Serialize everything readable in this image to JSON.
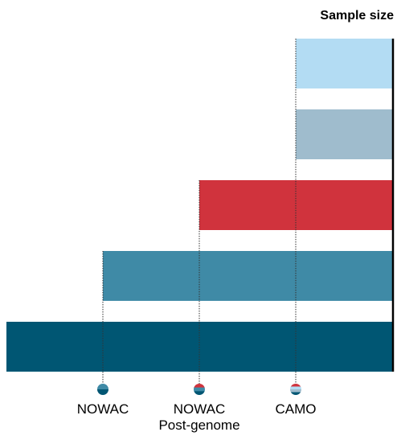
{
  "chart_data": {
    "type": "bar",
    "orientation": "horizontal",
    "title": "Sample size",
    "bars": [
      {
        "id": "bar-1",
        "color": "#b3dcf3",
        "start_marker": "CAMO"
      },
      {
        "id": "bar-2",
        "color": "#9fbccd",
        "start_marker": "CAMO"
      },
      {
        "id": "bar-3",
        "color": "#d0333d",
        "start_marker": "NOWAC Post-genome"
      },
      {
        "id": "bar-4",
        "color": "#3f8aa6",
        "start_marker": "NOWAC"
      },
      {
        "id": "bar-5",
        "color": "#005673",
        "start_marker": "axis-left"
      }
    ],
    "markers": [
      {
        "label_lines": [
          "NOWAC"
        ],
        "rel_position": 0.25,
        "stripes": [
          "#3f8aa6",
          "#005673"
        ]
      },
      {
        "label_lines": [
          "NOWAC",
          "Post-genome"
        ],
        "rel_position": 0.5,
        "stripes": [
          "#d0333d",
          "#3f8aa6",
          "#005673"
        ]
      },
      {
        "label_lines": [
          "CAMO"
        ],
        "rel_position": 0.75,
        "stripes": [
          "#d0333d",
          "#b3dcf3",
          "#9fbccd",
          "#005673"
        ]
      }
    ],
    "axis_line_color": "#000000",
    "guide_line_style": "dotted"
  }
}
